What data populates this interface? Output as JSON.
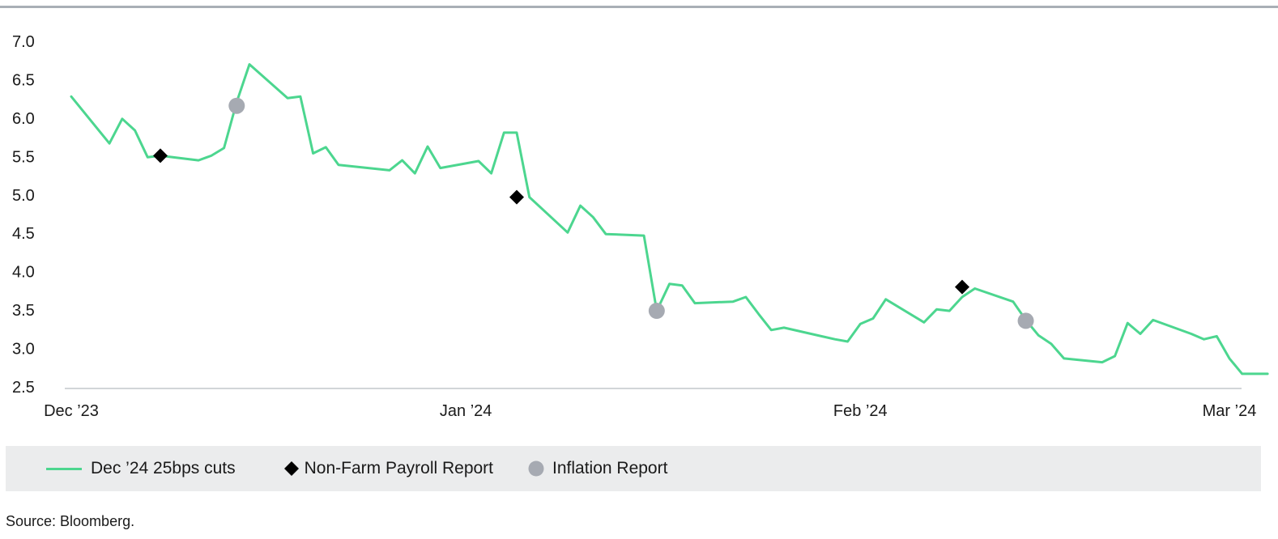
{
  "chart_data": {
    "type": "line",
    "title": "",
    "xlabel": "",
    "ylabel": "",
    "ylim": [
      2.5,
      7.0
    ],
    "yticks": [
      "7.0",
      "6.5",
      "6.0",
      "5.5",
      "5.0",
      "4.5",
      "4.0",
      "3.5",
      "3.0",
      "2.5"
    ],
    "xlim": [
      "2023-12-01",
      "2024-03-01"
    ],
    "xticks": [
      {
        "date": "2023-12-01",
        "label": "Dec ’23"
      },
      {
        "date": "2024-01-01",
        "label": "Jan ’24"
      },
      {
        "date": "2024-02-01",
        "label": "Feb ’24"
      },
      {
        "date": "2024-03-01",
        "label": "Mar ’24"
      }
    ],
    "grid": false,
    "legend_position": "bottom",
    "series": [
      {
        "name": "Dec ’24 25bps cuts",
        "color": "#4cd68f",
        "points": [
          [
            "2023-12-01",
            6.28
          ],
          [
            "2023-12-04",
            5.67
          ],
          [
            "2023-12-05",
            5.99
          ],
          [
            "2023-12-06",
            5.84
          ],
          [
            "2023-12-07",
            5.49
          ],
          [
            "2023-12-08",
            5.51
          ],
          [
            "2023-12-11",
            5.45
          ],
          [
            "2023-12-12",
            5.51
          ],
          [
            "2023-12-13",
            5.61
          ],
          [
            "2023-12-14",
            6.21
          ],
          [
            "2023-12-15",
            6.7
          ],
          [
            "2023-12-18",
            6.26
          ],
          [
            "2023-12-19",
            6.28
          ],
          [
            "2023-12-20",
            5.54
          ],
          [
            "2023-12-21",
            5.62
          ],
          [
            "2023-12-22",
            5.39
          ],
          [
            "2023-12-26",
            5.32
          ],
          [
            "2023-12-27",
            5.45
          ],
          [
            "2023-12-28",
            5.28
          ],
          [
            "2023-12-29",
            5.63
          ],
          [
            "2023-12-30",
            5.35
          ],
          [
            "2024-01-02",
            5.44
          ],
          [
            "2024-01-03",
            5.28
          ],
          [
            "2024-01-04",
            5.81
          ],
          [
            "2024-01-05",
            5.81
          ],
          [
            "2024-01-06",
            4.97
          ],
          [
            "2024-01-09",
            4.51
          ],
          [
            "2024-01-10",
            4.86
          ],
          [
            "2024-01-11",
            4.71
          ],
          [
            "2024-01-12",
            4.49
          ],
          [
            "2024-01-15",
            4.47
          ],
          [
            "2024-01-16",
            3.49
          ],
          [
            "2024-01-17",
            3.84
          ],
          [
            "2024-01-18",
            3.82
          ],
          [
            "2024-01-19",
            3.59
          ],
          [
            "2024-01-22",
            3.61
          ],
          [
            "2024-01-23",
            3.67
          ],
          [
            "2024-01-24",
            3.45
          ],
          [
            "2024-01-25",
            3.24
          ],
          [
            "2024-01-26",
            3.27
          ],
          [
            "2024-01-30",
            3.12
          ],
          [
            "2024-01-31",
            3.09
          ],
          [
            "2024-02-01",
            3.32
          ],
          [
            "2024-02-02",
            3.39
          ],
          [
            "2024-02-03",
            3.64
          ],
          [
            "2024-02-06",
            3.34
          ],
          [
            "2024-02-07",
            3.51
          ],
          [
            "2024-02-08",
            3.49
          ],
          [
            "2024-02-09",
            3.67
          ],
          [
            "2024-02-10",
            3.78
          ],
          [
            "2024-02-13",
            3.61
          ],
          [
            "2024-02-14",
            3.37
          ],
          [
            "2024-02-15",
            3.17
          ],
          [
            "2024-02-16",
            3.06
          ],
          [
            "2024-02-17",
            2.87
          ],
          [
            "2024-02-20",
            2.82
          ],
          [
            "2024-02-21",
            2.9
          ],
          [
            "2024-02-22",
            3.33
          ],
          [
            "2024-02-23",
            3.19
          ],
          [
            "2024-02-24",
            3.37
          ],
          [
            "2024-02-27",
            3.19
          ],
          [
            "2024-02-28",
            3.12
          ],
          [
            "2024-02-29",
            3.16
          ],
          [
            "2024-03-01",
            2.87
          ],
          [
            "2024-03-02",
            2.67
          ],
          [
            "2024-03-04",
            2.67
          ]
        ]
      }
    ],
    "markers": [
      {
        "name": "Non-Farm Payroll Report",
        "shape": "diamond",
        "color": "#000000",
        "points": [
          [
            "2023-12-08",
            5.51
          ],
          [
            "2024-01-05",
            4.97
          ],
          [
            "2024-02-09",
            3.8
          ]
        ]
      },
      {
        "name": "Inflation Report",
        "shape": "circle",
        "color": "#a6aab2",
        "points": [
          [
            "2023-12-14",
            6.16
          ],
          [
            "2024-01-16",
            3.49
          ],
          [
            "2024-02-14",
            3.36
          ]
        ]
      }
    ]
  },
  "legend": {
    "line_label": "Dec ’24 25bps cuts",
    "nfp_label": "Non-Farm Payroll Report",
    "inflation_label": "Inflation Report"
  },
  "source": "Source: Bloomberg."
}
